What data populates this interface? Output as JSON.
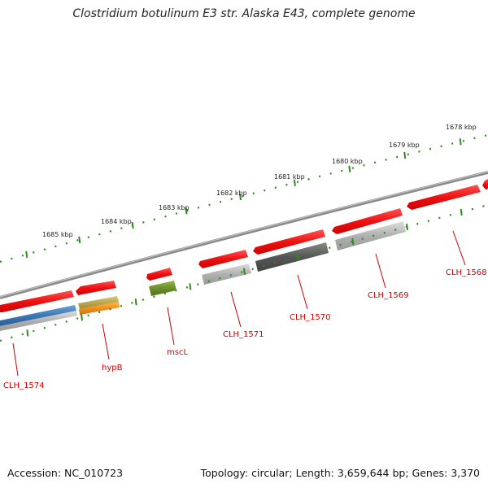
{
  "header": {
    "title": "Clostridium botulinum E3 str. Alaska E43, complete genome"
  },
  "footer": {
    "accession": "Accession: NC_010723",
    "topology": "Topology: circular; Length: 3,659,644 bp; Genes: 3,370"
  },
  "scale": {
    "ticks": [
      "1685 kbp",
      "1684 kbp",
      "1683 kbp",
      "1682 kbp",
      "1681 kbp",
      "1680 kbp",
      "1679 kbp",
      "1678 kbp"
    ]
  },
  "genes": [
    {
      "label": "CLH_1574",
      "color": "#3a78b4"
    },
    {
      "label": "hypB",
      "color": "#f0901e"
    },
    {
      "label": "mscL",
      "color": "#6b8f2a"
    },
    {
      "label": "CLH_1571",
      "color": "#b0b0b0"
    },
    {
      "label": "CLH_1570",
      "color": "#555555"
    },
    {
      "label": "CLH_1569",
      "color": "#b0b0b0"
    },
    {
      "label": "CLH_1568",
      "color": "#ee1111"
    }
  ],
  "colors": {
    "backbone": "#8a8a8a",
    "feature_red": "#ee1111",
    "tick_green": "#2e8b1e",
    "label_red": "#cc0000"
  }
}
